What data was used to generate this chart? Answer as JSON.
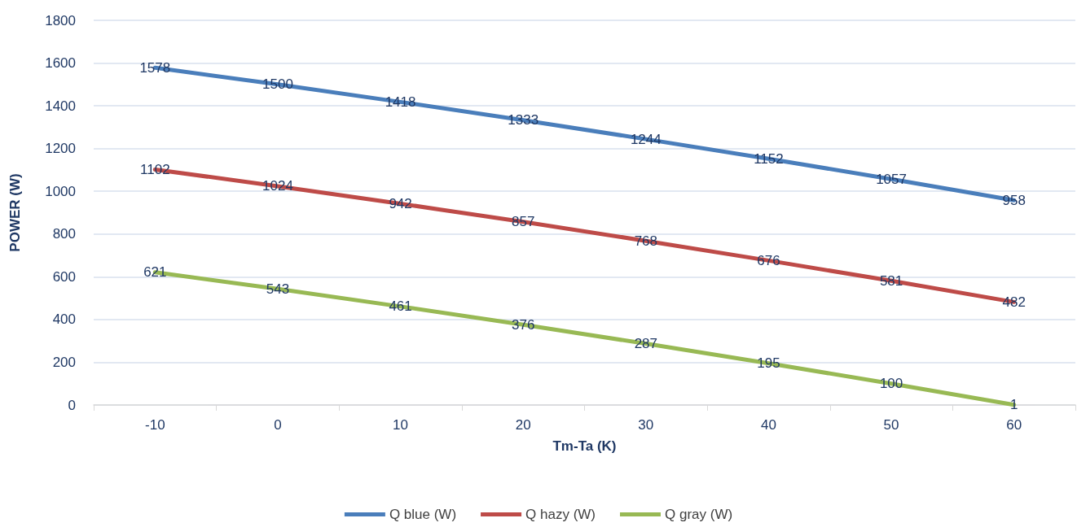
{
  "chart_data": {
    "type": "line",
    "xlabel": "Tm-Ta (K)",
    "ylabel": "POWER (W)",
    "categories": [
      "-10",
      "0",
      "10",
      "20",
      "30",
      "40",
      "50",
      "60"
    ],
    "series": [
      {
        "name": "Q blue (W)",
        "color": "#4a7ebb",
        "values": [
          1578,
          1500,
          1418,
          1333,
          1244,
          1152,
          1057,
          958
        ]
      },
      {
        "name": "Q hazy (W)",
        "color": "#be4b48",
        "values": [
          1102,
          1024,
          942,
          857,
          768,
          676,
          581,
          482
        ]
      },
      {
        "name": "Q gray (W)",
        "color": "#98b954",
        "values": [
          621,
          543,
          461,
          376,
          287,
          195,
          100,
          1
        ]
      }
    ],
    "ylim": [
      0,
      1800
    ],
    "yticks": [
      0,
      200,
      400,
      600,
      800,
      1000,
      1200,
      1400,
      1600,
      1800
    ],
    "grid": "y",
    "legend": "bottom",
    "marker": "none",
    "line_style": "solid",
    "data_labels": true
  }
}
